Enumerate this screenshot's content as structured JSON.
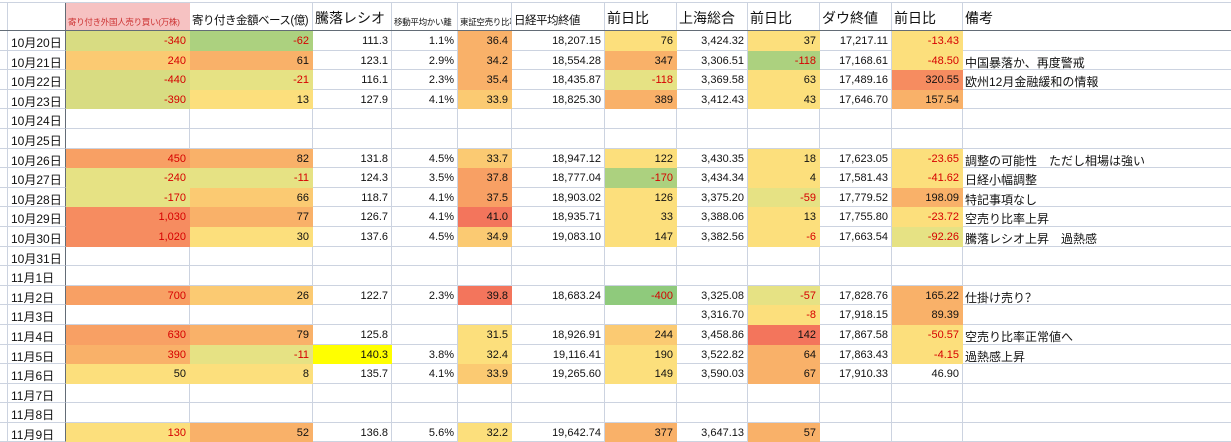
{
  "palette": {
    "grid_line": "#ccd3e0",
    "frozen_pane_line": "#636c76",
    "negative_text": "#d60000",
    "header_pink_bg": "#f6c2c2",
    "header_pink_text": "#cc3333",
    "fills": {
      "g3": "#8fca7c",
      "g2": "#acd17f",
      "g1": "#d8dc82",
      "y2": "#e6e284",
      "y1": "#fcdf7c",
      "o1": "#fbca72",
      "o2": "#f9b169",
      "o3": "#f8a064",
      "r1": "#f68c60",
      "r2": "#f3755c",
      "hl": "#ffff00"
    }
  },
  "header": {
    "cols": [
      {
        "key": "corner",
        "label": ""
      },
      {
        "key": "date",
        "label": ""
      },
      {
        "key": "foreign-shares",
        "label": "寄り付き外国人売り買い(万株)"
      },
      {
        "key": "amount-base",
        "label": "寄り付き金額ベース(億)"
      },
      {
        "key": "ratio",
        "label": "騰落レシオ"
      },
      {
        "key": "ma-deviation",
        "label": "移動平均かい離"
      },
      {
        "key": "short-ratio",
        "label": "東証空売り比率"
      },
      {
        "key": "nikkei-close",
        "label": "日経平均終値"
      },
      {
        "key": "nikkei-change",
        "label": "前日比"
      },
      {
        "key": "shanghai",
        "label": "上海総合"
      },
      {
        "key": "shanghai-change",
        "label": "前日比"
      },
      {
        "key": "dow-close",
        "label": "ダウ終値"
      },
      {
        "key": "dow-change",
        "label": "前日比"
      },
      {
        "key": "memo",
        "label": "備考"
      }
    ]
  },
  "rows": [
    {
      "date": "10月20日",
      "cells": [
        {
          "v": "-340",
          "bg": "g1",
          "fc": "red"
        },
        {
          "v": "-62",
          "bg": "g2",
          "fc": "red"
        },
        {
          "v": "111.3"
        },
        {
          "v": "1.1%"
        },
        {
          "v": "36.4",
          "bg": "o2"
        },
        {
          "v": "18,207.15"
        },
        {
          "v": "76",
          "bg": "y1"
        },
        {
          "v": "3,424.32"
        },
        {
          "v": "37",
          "bg": "y1"
        },
        {
          "v": "17,217.11"
        },
        {
          "v": "-13.43",
          "bg": "y1",
          "fc": "red"
        },
        {
          "v": ""
        }
      ]
    },
    {
      "date": "10月21日",
      "cells": [
        {
          "v": "240",
          "bg": "o1",
          "fc": "red"
        },
        {
          "v": "61",
          "bg": "o2"
        },
        {
          "v": "123.1"
        },
        {
          "v": "2.9%"
        },
        {
          "v": "34.2",
          "bg": "o2"
        },
        {
          "v": "18,554.28"
        },
        {
          "v": "347",
          "bg": "o2"
        },
        {
          "v": "3,306.51"
        },
        {
          "v": "-118",
          "bg": "g2",
          "fc": "red"
        },
        {
          "v": "17,168.61"
        },
        {
          "v": "-48.50",
          "bg": "y1",
          "fc": "red"
        },
        {
          "v": "中国暴落か、再度警戒"
        }
      ]
    },
    {
      "date": "10月22日",
      "cells": [
        {
          "v": "-440",
          "bg": "g1",
          "fc": "red"
        },
        {
          "v": "-21",
          "bg": "y2",
          "fc": "red"
        },
        {
          "v": "116.1"
        },
        {
          "v": "2.3%"
        },
        {
          "v": "35.4",
          "bg": "o2"
        },
        {
          "v": "18,435.87"
        },
        {
          "v": "-118",
          "bg": "y2",
          "fc": "red"
        },
        {
          "v": "3,369.58"
        },
        {
          "v": "63",
          "bg": "y1"
        },
        {
          "v": "17,489.16"
        },
        {
          "v": "320.55",
          "bg": "r1"
        },
        {
          "v": "欧州12月金融緩和の情報"
        }
      ]
    },
    {
      "date": "10月23日",
      "cells": [
        {
          "v": "-390",
          "bg": "g1",
          "fc": "red"
        },
        {
          "v": "13",
          "bg": "y1"
        },
        {
          "v": "127.9"
        },
        {
          "v": "4.1%"
        },
        {
          "v": "33.9",
          "bg": "o1"
        },
        {
          "v": "18,825.30"
        },
        {
          "v": "389",
          "bg": "o2"
        },
        {
          "v": "3,412.43"
        },
        {
          "v": "43",
          "bg": "y1"
        },
        {
          "v": "17,646.70"
        },
        {
          "v": "157.54",
          "bg": "o2"
        },
        {
          "v": ""
        }
      ]
    },
    {
      "date": "10月24日",
      "cells": [
        {
          "v": ""
        },
        {
          "v": ""
        },
        {
          "v": ""
        },
        {
          "v": ""
        },
        {
          "v": ""
        },
        {
          "v": ""
        },
        {
          "v": ""
        },
        {
          "v": ""
        },
        {
          "v": ""
        },
        {
          "v": ""
        },
        {
          "v": ""
        },
        {
          "v": ""
        }
      ]
    },
    {
      "date": "10月25日",
      "cells": [
        {
          "v": ""
        },
        {
          "v": ""
        },
        {
          "v": ""
        },
        {
          "v": ""
        },
        {
          "v": ""
        },
        {
          "v": ""
        },
        {
          "v": ""
        },
        {
          "v": ""
        },
        {
          "v": ""
        },
        {
          "v": ""
        },
        {
          "v": ""
        },
        {
          "v": ""
        }
      ]
    },
    {
      "date": "10月26日",
      "cells": [
        {
          "v": "450",
          "bg": "o3",
          "fc": "red"
        },
        {
          "v": "82",
          "bg": "o2"
        },
        {
          "v": "131.8"
        },
        {
          "v": "4.5%"
        },
        {
          "v": "33.7",
          "bg": "o1"
        },
        {
          "v": "18,947.12"
        },
        {
          "v": "122",
          "bg": "y1"
        },
        {
          "v": "3,430.35"
        },
        {
          "v": "18",
          "bg": "y1"
        },
        {
          "v": "17,623.05"
        },
        {
          "v": "-23.65",
          "bg": "y1",
          "fc": "red"
        },
        {
          "v": "調整の可能性　ただし相場は強い"
        }
      ]
    },
    {
      "date": "10月27日",
      "cells": [
        {
          "v": "-240",
          "bg": "y2",
          "fc": "red"
        },
        {
          "v": "-11",
          "bg": "y2",
          "fc": "red"
        },
        {
          "v": "124.3"
        },
        {
          "v": "3.5%"
        },
        {
          "v": "37.8",
          "bg": "o3"
        },
        {
          "v": "18,777.04"
        },
        {
          "v": "-170",
          "bg": "g2",
          "fc": "red"
        },
        {
          "v": "3,434.34"
        },
        {
          "v": "4",
          "bg": "y1"
        },
        {
          "v": "17,581.43"
        },
        {
          "v": "-41.62",
          "bg": "y1",
          "fc": "red"
        },
        {
          "v": "日経小幅調整"
        }
      ]
    },
    {
      "date": "10月28日",
      "cells": [
        {
          "v": "-170",
          "bg": "y2",
          "fc": "red"
        },
        {
          "v": "66",
          "bg": "o1"
        },
        {
          "v": "118.7"
        },
        {
          "v": "4.1%"
        },
        {
          "v": "37.5",
          "bg": "o3"
        },
        {
          "v": "18,903.02"
        },
        {
          "v": "126",
          "bg": "y1"
        },
        {
          "v": "3,375.20"
        },
        {
          "v": "-59",
          "bg": "y2",
          "fc": "red"
        },
        {
          "v": "17,779.52"
        },
        {
          "v": "198.09",
          "bg": "o2"
        },
        {
          "v": "特記事項なし"
        }
      ]
    },
    {
      "date": "10月29日",
      "cells": [
        {
          "v": "1,030",
          "bg": "r1",
          "fc": "red"
        },
        {
          "v": "77",
          "bg": "o2"
        },
        {
          "v": "126.7"
        },
        {
          "v": "4.1%"
        },
        {
          "v": "41.0",
          "bg": "r2"
        },
        {
          "v": "18,935.71"
        },
        {
          "v": "33",
          "bg": "y1"
        },
        {
          "v": "3,388.06"
        },
        {
          "v": "13",
          "bg": "y1"
        },
        {
          "v": "17,755.80"
        },
        {
          "v": "-23.72",
          "bg": "y1",
          "fc": "red"
        },
        {
          "v": "空売り比率上昇"
        }
      ]
    },
    {
      "date": "10月30日",
      "cells": [
        {
          "v": "1,020",
          "bg": "r1",
          "fc": "red"
        },
        {
          "v": "30",
          "bg": "y1"
        },
        {
          "v": "137.6"
        },
        {
          "v": "4.5%"
        },
        {
          "v": "34.9",
          "bg": "o1"
        },
        {
          "v": "19,083.10"
        },
        {
          "v": "147",
          "bg": "y1"
        },
        {
          "v": "3,382.56"
        },
        {
          "v": "-6",
          "bg": "y1",
          "fc": "red"
        },
        {
          "v": "17,663.54"
        },
        {
          "v": "-92.26",
          "bg": "y2",
          "fc": "red"
        },
        {
          "v": "騰落レシオ上昇　過熱感"
        }
      ]
    },
    {
      "date": "10月31日",
      "cells": [
        {
          "v": ""
        },
        {
          "v": ""
        },
        {
          "v": ""
        },
        {
          "v": ""
        },
        {
          "v": ""
        },
        {
          "v": ""
        },
        {
          "v": ""
        },
        {
          "v": ""
        },
        {
          "v": ""
        },
        {
          "v": ""
        },
        {
          "v": ""
        },
        {
          "v": ""
        }
      ]
    },
    {
      "date": "11月1日",
      "cells": [
        {
          "v": ""
        },
        {
          "v": ""
        },
        {
          "v": ""
        },
        {
          "v": ""
        },
        {
          "v": ""
        },
        {
          "v": ""
        },
        {
          "v": ""
        },
        {
          "v": ""
        },
        {
          "v": ""
        },
        {
          "v": ""
        },
        {
          "v": ""
        },
        {
          "v": ""
        }
      ]
    },
    {
      "date": "11月2日",
      "cells": [
        {
          "v": "700",
          "bg": "o3",
          "fc": "red"
        },
        {
          "v": "26",
          "bg": "o1"
        },
        {
          "v": "122.7"
        },
        {
          "v": "2.3%"
        },
        {
          "v": "39.8",
          "bg": "r2"
        },
        {
          "v": "18,683.24"
        },
        {
          "v": "-400",
          "bg": "g3",
          "fc": "red"
        },
        {
          "v": "3,325.08"
        },
        {
          "v": "-57",
          "bg": "y2",
          "fc": "red"
        },
        {
          "v": "17,828.76"
        },
        {
          "v": "165.22",
          "bg": "o2"
        },
        {
          "v": "仕掛け売り？"
        }
      ]
    },
    {
      "date": "11月3日",
      "cells": [
        {
          "v": ""
        },
        {
          "v": ""
        },
        {
          "v": ""
        },
        {
          "v": ""
        },
        {
          "v": ""
        },
        {
          "v": ""
        },
        {
          "v": ""
        },
        {
          "v": "3,316.70"
        },
        {
          "v": "-8",
          "bg": "y1",
          "fc": "red"
        },
        {
          "v": "17,918.15"
        },
        {
          "v": "89.39",
          "bg": "o2"
        },
        {
          "v": ""
        }
      ]
    },
    {
      "date": "11月4日",
      "cells": [
        {
          "v": "630",
          "bg": "o3",
          "fc": "red"
        },
        {
          "v": "79",
          "bg": "o2"
        },
        {
          "v": "125.8"
        },
        {
          "v": ""
        },
        {
          "v": "31.5",
          "bg": "y1"
        },
        {
          "v": "18,926.91"
        },
        {
          "v": "244",
          "bg": "o1"
        },
        {
          "v": "3,458.86"
        },
        {
          "v": "142",
          "bg": "r2"
        },
        {
          "v": "17,867.58"
        },
        {
          "v": "-50.57",
          "bg": "y1",
          "fc": "red"
        },
        {
          "v": "空売り比率正常値へ"
        }
      ]
    },
    {
      "date": "11月5日",
      "cells": [
        {
          "v": "390",
          "bg": "o2",
          "fc": "red"
        },
        {
          "v": "-11",
          "bg": "y2",
          "fc": "red"
        },
        {
          "v": "140.3",
          "bg": "hl"
        },
        {
          "v": "3.8%"
        },
        {
          "v": "32.4",
          "bg": "y1"
        },
        {
          "v": "19,116.41"
        },
        {
          "v": "190",
          "bg": "y1"
        },
        {
          "v": "3,522.82"
        },
        {
          "v": "64",
          "bg": "o2"
        },
        {
          "v": "17,863.43"
        },
        {
          "v": "-4.15",
          "bg": "y1",
          "fc": "red"
        },
        {
          "v": "過熱感上昇"
        }
      ]
    },
    {
      "date": "11月6日",
      "cells": [
        {
          "v": "50",
          "bg": "y1"
        },
        {
          "v": "8",
          "bg": "y1"
        },
        {
          "v": "135.7"
        },
        {
          "v": "4.1%"
        },
        {
          "v": "33.9",
          "bg": "o1"
        },
        {
          "v": "19,265.60"
        },
        {
          "v": "149",
          "bg": "y1"
        },
        {
          "v": "3,590.03"
        },
        {
          "v": "67",
          "bg": "o2"
        },
        {
          "v": "17,910.33"
        },
        {
          "v": "46.90"
        },
        {
          "v": ""
        }
      ]
    },
    {
      "date": "11月7日",
      "cells": [
        {
          "v": ""
        },
        {
          "v": ""
        },
        {
          "v": ""
        },
        {
          "v": ""
        },
        {
          "v": ""
        },
        {
          "v": ""
        },
        {
          "v": ""
        },
        {
          "v": ""
        },
        {
          "v": ""
        },
        {
          "v": ""
        },
        {
          "v": ""
        },
        {
          "v": ""
        }
      ]
    },
    {
      "date": "11月8日",
      "cells": [
        {
          "v": ""
        },
        {
          "v": ""
        },
        {
          "v": ""
        },
        {
          "v": ""
        },
        {
          "v": ""
        },
        {
          "v": ""
        },
        {
          "v": ""
        },
        {
          "v": ""
        },
        {
          "v": ""
        },
        {
          "v": ""
        },
        {
          "v": ""
        },
        {
          "v": ""
        }
      ]
    },
    {
      "date": "11月9日",
      "cells": [
        {
          "v": "130",
          "bg": "y1",
          "fc": "red"
        },
        {
          "v": "52",
          "bg": "o2"
        },
        {
          "v": "136.8"
        },
        {
          "v": "5.6%"
        },
        {
          "v": "32.2",
          "bg": "y1"
        },
        {
          "v": "19,642.74"
        },
        {
          "v": "377",
          "bg": "o2"
        },
        {
          "v": "3,647.13"
        },
        {
          "v": "57",
          "bg": "o2"
        },
        {
          "v": ""
        },
        {
          "v": ""
        },
        {
          "v": ""
        }
      ]
    },
    {
      "date": "",
      "cells": [
        {
          "v": ""
        },
        {
          "v": ""
        },
        {
          "v": ""
        },
        {
          "v": ""
        },
        {
          "v": ""
        },
        {
          "v": ""
        },
        {
          "v": ""
        },
        {
          "v": ""
        },
        {
          "v": ""
        },
        {
          "v": ""
        },
        {
          "v": ""
        },
        {
          "v": ""
        }
      ]
    }
  ]
}
